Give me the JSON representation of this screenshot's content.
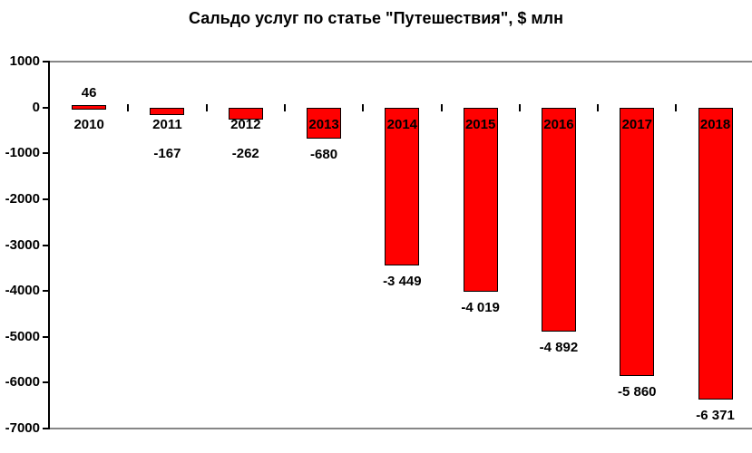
{
  "chart_data": {
    "type": "bar",
    "title": "Сальдо услуг по статье \"Путешествия\", $ млн",
    "categories": [
      "2010",
      "2011",
      "2012",
      "2013",
      "2014",
      "2015",
      "2016",
      "2017",
      "2018"
    ],
    "values": [
      46,
      -167,
      -262,
      -680,
      -3449,
      -4019,
      -4892,
      -5860,
      -6371
    ],
    "value_labels": [
      "46",
      "-167",
      "-262",
      "-680",
      "-3 449",
      "-4 019",
      "-4 892",
      "-5 860",
      "-6 371"
    ],
    "ylim": [
      -7000,
      1000
    ],
    "yticks": [
      1000,
      0,
      -1000,
      -2000,
      -3000,
      -4000,
      -5000,
      -6000,
      -7000
    ],
    "ytick_labels": [
      "1000",
      "0",
      "-1000",
      "-2000",
      "-3000",
      "-4000",
      "-5000",
      "-6000",
      "-7000"
    ],
    "grid": "off",
    "legend": "none",
    "bar_color": "#ff0000",
    "bar_border_color": "#000000",
    "axis_color": "#000000",
    "plot_border_color": "#868686",
    "text_color": "#000000",
    "background": "#ffffff"
  }
}
